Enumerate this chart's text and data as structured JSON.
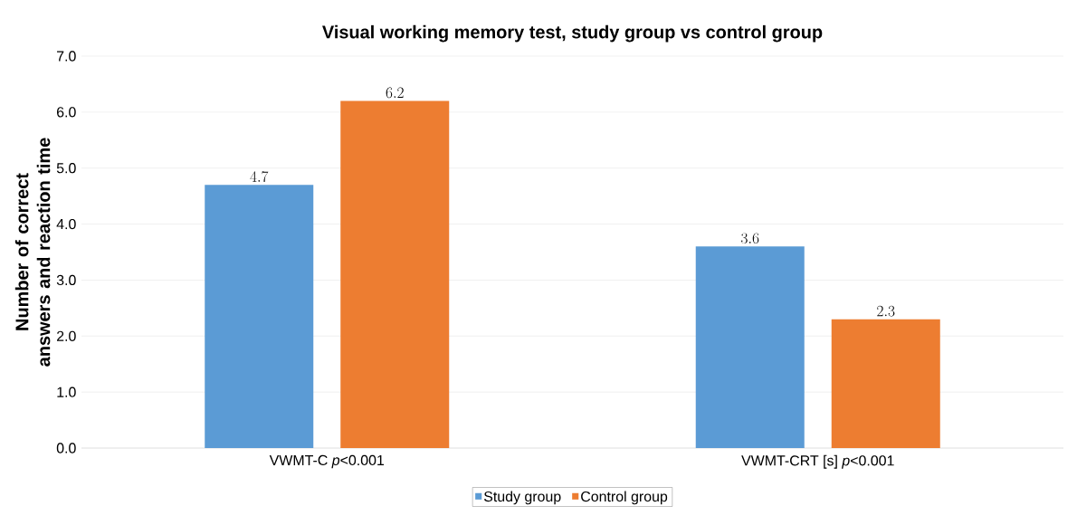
{
  "chart_data": {
    "type": "bar",
    "title": "Visual working memory test, study group vs control group",
    "ylabel": "Number of correct answers and reaction time",
    "categories": [
      "VWMT-C *p*<0.001",
      "VWMT-CRT [s] *p*<0.001"
    ],
    "series": [
      {
        "name": "Study group",
        "color": "#5b9bd5",
        "values": [
          4.7,
          3.6
        ]
      },
      {
        "name": "Control group",
        "color": "#ed7d31",
        "values": [
          6.2,
          2.3
        ]
      }
    ],
    "ylim": [
      0,
      7
    ],
    "yticks": [
      {
        "value": 0,
        "label": "0.0"
      },
      {
        "value": 1,
        "label": "1.0"
      },
      {
        "value": 2,
        "label": "2.0"
      },
      {
        "value": 3,
        "label": "3.0"
      },
      {
        "value": 4,
        "label": "4.0"
      },
      {
        "value": 5,
        "label": "5.0"
      },
      {
        "value": 6,
        "label": "6.0"
      },
      {
        "value": 7,
        "label": "7.0"
      }
    ],
    "grid": "y",
    "legend": "bottom",
    "data_labels": true
  }
}
